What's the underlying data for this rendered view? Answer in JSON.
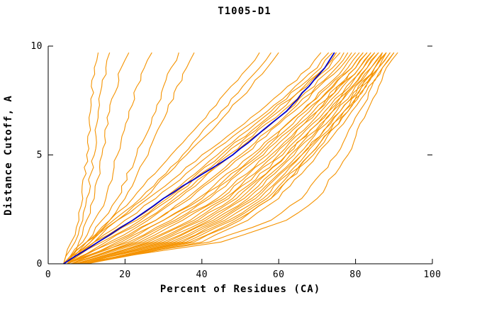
{
  "chart_data": {
    "type": "line",
    "title": "T1005-D1",
    "xlabel": "Percent of Residues (CA)",
    "ylabel": "Distance Cutoff, A",
    "xlim": [
      0,
      100
    ],
    "ylim": [
      0,
      10
    ],
    "xticks": [
      0,
      20,
      40,
      60,
      80,
      100
    ],
    "yticks": [
      0,
      5,
      10
    ],
    "grid": false,
    "legend": null,
    "axis_color": "#000000",
    "models_color": "#f59300",
    "y_stations": [
      0,
      1,
      2,
      3,
      5,
      7,
      9,
      9.7
    ],
    "highlight": {
      "name": "highlighted-model",
      "color": "#0000cd",
      "x": [
        4,
        13,
        22,
        30,
        48,
        62,
        72,
        74.5
      ]
    },
    "models": [
      [
        4,
        6,
        8,
        9,
        10,
        11,
        12,
        13
      ],
      [
        4,
        7,
        9,
        10,
        12,
        13,
        15,
        16
      ],
      [
        5,
        8,
        10,
        12,
        14,
        16,
        19,
        21
      ],
      [
        4,
        9,
        12,
        15,
        18,
        21,
        25,
        27
      ],
      [
        5,
        10,
        14,
        18,
        23,
        28,
        32,
        34
      ],
      [
        5,
        11,
        16,
        20,
        26,
        31,
        36,
        38
      ],
      [
        4,
        10,
        16,
        22,
        32,
        42,
        52,
        55
      ],
      [
        5,
        12,
        18,
        25,
        36,
        47,
        57,
        60
      ],
      [
        4,
        11,
        17,
        24,
        35,
        45,
        55,
        58
      ],
      [
        4,
        10,
        18,
        26,
        40,
        55,
        68,
        71
      ],
      [
        5,
        12,
        20,
        28,
        42,
        57,
        70,
        73
      ],
      [
        4,
        14,
        24,
        32,
        46,
        60,
        72,
        75
      ],
      [
        5,
        16,
        26,
        34,
        48,
        62,
        74,
        77
      ],
      [
        6,
        18,
        28,
        36,
        50,
        63,
        75,
        78
      ],
      [
        4,
        12,
        22,
        30,
        44,
        58,
        71,
        74
      ],
      [
        5,
        15,
        25,
        33,
        47,
        61,
        73,
        76
      ],
      [
        6,
        20,
        30,
        40,
        54,
        66,
        77,
        80
      ],
      [
        5,
        17,
        28,
        37,
        51,
        64,
        76,
        79
      ],
      [
        4,
        13,
        23,
        31,
        45,
        59,
        72,
        75
      ],
      [
        6,
        22,
        33,
        42,
        56,
        68,
        79,
        82
      ],
      [
        5,
        19,
        30,
        39,
        53,
        66,
        78,
        81
      ],
      [
        6,
        24,
        35,
        45,
        58,
        70,
        80,
        83
      ],
      [
        5,
        21,
        32,
        41,
        55,
        67,
        79,
        82
      ],
      [
        7,
        26,
        38,
        47,
        60,
        71,
        81,
        84
      ],
      [
        6,
        23,
        34,
        44,
        57,
        69,
        80,
        83
      ],
      [
        7,
        28,
        40,
        49,
        62,
        73,
        82,
        85
      ],
      [
        6,
        25,
        37,
        46,
        59,
        70,
        81,
        84
      ],
      [
        8,
        30,
        42,
        51,
        63,
        74,
        83,
        86
      ],
      [
        7,
        27,
        39,
        48,
        61,
        72,
        82,
        85
      ],
      [
        8,
        32,
        44,
        53,
        65,
        75,
        84,
        87
      ],
      [
        7,
        29,
        41,
        50,
        62,
        73,
        83,
        86
      ],
      [
        9,
        34,
        46,
        55,
        66,
        76,
        85,
        88
      ],
      [
        8,
        31,
        43,
        52,
        64,
        74,
        84,
        87
      ],
      [
        9,
        36,
        48,
        57,
        68,
        77,
        86,
        88
      ],
      [
        8,
        33,
        45,
        54,
        66,
        76,
        85,
        87
      ],
      [
        10,
        38,
        50,
        58,
        69,
        78,
        86,
        89
      ],
      [
        9,
        35,
        47,
        56,
        67,
        77,
        85,
        88
      ],
      [
        10,
        40,
        52,
        60,
        70,
        79,
        87,
        90
      ],
      [
        9,
        37,
        49,
        58,
        68,
        78,
        86,
        89
      ],
      [
        6,
        45,
        62,
        70,
        78,
        83,
        88,
        91
      ],
      [
        7,
        42,
        58,
        66,
        75,
        81,
        87,
        90
      ]
    ]
  }
}
